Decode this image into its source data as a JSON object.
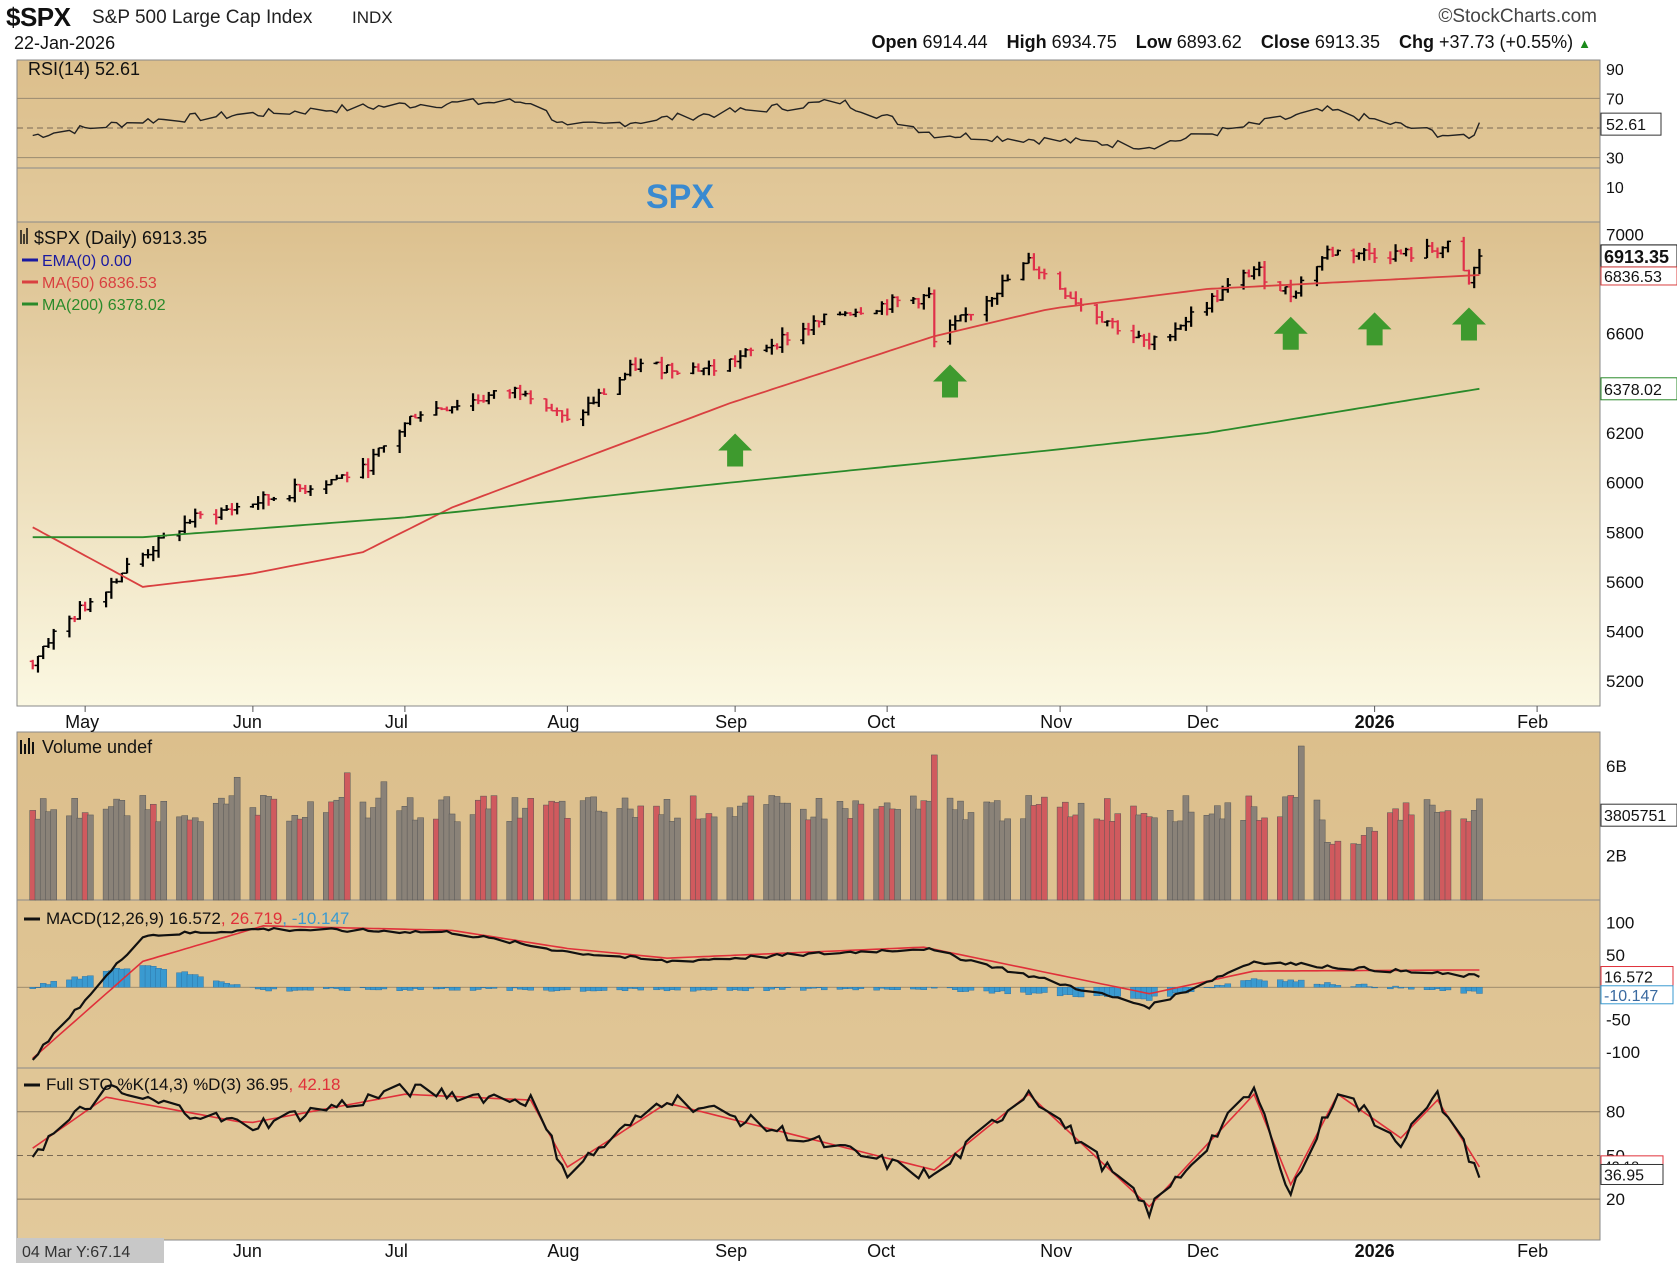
{
  "header": {
    "symbol": "$SPX",
    "name": "S&P 500 Large Cap Index",
    "exchange": "INDX",
    "source": "©StockCharts.com",
    "date": "22-Jan-2026",
    "open_label": "Open",
    "open": "6914.44",
    "high_label": "High",
    "high": "6934.75",
    "low_label": "Low",
    "low": "6893.62",
    "close_label": "Close",
    "close": "6913.35",
    "chg_label": "Chg",
    "chg": "+37.73 (+0.55%)"
  },
  "colors": {
    "up": "#000000",
    "down": "#e0304a",
    "ma50": "#d94040",
    "ma200": "#2a8a2a",
    "ema": "#1a1aa0",
    "macd_hist": "#3a9ad0",
    "arrow": "#3e9a2e",
    "spx_label": "#3a8ad0"
  },
  "panels": {
    "rsi": {
      "label": "RSI(14) 52.61",
      "ticks": [
        "90",
        "70",
        "50",
        "30",
        "10"
      ],
      "value": "52.61"
    },
    "spx_title": "SPX",
    "price": {
      "label": "$SPX (Daily) 6913.35",
      "ema_label": "EMA(0) 0.00",
      "ma50_label": "MA(50) 6836.53",
      "ma200_label": "MA(200) 6378.02",
      "ticks": [
        "7000",
        "6800",
        "6600",
        "6200",
        "6000",
        "5800",
        "5600",
        "5400",
        "5200"
      ],
      "tag_close": "6913.35",
      "tag_ma50": "6836.53",
      "tag_ma200": "6378.02"
    },
    "volume": {
      "label": "Volume undef",
      "ticks": [
        "6B",
        "2B"
      ],
      "tag": "3805751"
    },
    "macd": {
      "label_a": "MACD(12,26,9) 16.572",
      "label_b": ", 26.719",
      "label_c": ", -10.147",
      "ticks": [
        "100",
        "50",
        "-50",
        "-100"
      ],
      "tag_macd": "16.572",
      "tag_hist": "-10.147"
    },
    "sto": {
      "label_a": "Full STO %K(14,3) %D(3) 36.95",
      "label_b": ", 42.18",
      "ticks": [
        "80",
        "50",
        "20"
      ],
      "tag_k": "36.95",
      "tag_d": "42.18"
    },
    "months_top": [
      "May",
      "Jun",
      "Jul",
      "Aug",
      "Sep",
      "Oct",
      "Nov",
      "Dec",
      "2026",
      "Feb"
    ],
    "months_bottom": [
      "Jun",
      "Jul",
      "Aug",
      "Sep",
      "Oct",
      "Nov",
      "Dec",
      "2026",
      "Feb"
    ],
    "cursor_readout": "04 Mar Y:67.14"
  },
  "chart_data": {
    "type": "line",
    "title": "$SPX S&P 500 Large Cap Index INDX",
    "price_ylim": [
      5100,
      7050
    ],
    "price_anchor_dates": [
      "2025-04-21",
      "2025-04-24",
      "2025-05-09",
      "2025-05-21",
      "2025-06-04",
      "2025-06-23",
      "2025-07-03",
      "2025-07-24",
      "2025-08-01",
      "2025-08-14",
      "2025-08-29",
      "2025-09-23",
      "2025-10-09",
      "2025-10-10",
      "2025-10-28",
      "2025-11-07",
      "2025-11-20",
      "2025-12-10",
      "2025-12-17",
      "2025-12-24",
      "2026-01-09",
      "2026-01-16",
      "2026-01-20",
      "2026-01-22"
    ],
    "price_anchors": [
      5280,
      5370,
      5660,
      5850,
      5930,
      6050,
      6280,
      6380,
      6240,
      6470,
      6460,
      6690,
      6750,
      6560,
      6890,
      6720,
      6550,
      6860,
      6760,
      6930,
      6920,
      6950,
      6800,
      6913.35
    ],
    "ma50_anchor_dates": [
      "2025-04-21",
      "2025-05-12",
      "2025-06-01",
      "2025-06-23",
      "2025-07-10",
      "2025-09-01",
      "2025-10-10",
      "2025-11-01",
      "2025-12-01",
      "2026-01-22"
    ],
    "ma50_anchors": [
      5820,
      5580,
      5630,
      5720,
      5900,
      6320,
      6590,
      6700,
      6780,
      6836.53
    ],
    "ma200_anchor_dates": [
      "2025-04-21",
      "2025-05-12",
      "2025-07-01",
      "2025-09-01",
      "2025-11-01",
      "2025-12-01",
      "2026-01-22"
    ],
    "ma200_anchors": [
      5780,
      5780,
      5860,
      6000,
      6130,
      6200,
      6378.02
    ],
    "support_arrow_dates": [
      "2025-09-02",
      "2025-10-13",
      "2025-12-17",
      "2026-01-02",
      "2026-01-20"
    ],
    "rsi_anchor_dates": [
      "2025-04-21",
      "2025-05-12",
      "2025-07-03",
      "2025-07-25",
      "2025-08-01",
      "2025-09-22",
      "2025-10-10",
      "2025-11-20",
      "2025-12-24",
      "2026-01-20",
      "2026-01-22"
    ],
    "rsi_anchors": [
      45,
      55,
      66,
      68,
      50,
      68,
      46,
      38,
      62,
      42,
      52.61
    ],
    "macd_anchor_dates": [
      "2025-04-21",
      "2025-05-12",
      "2025-06-04",
      "2025-07-10",
      "2025-08-01",
      "2025-08-20",
      "2025-10-08",
      "2025-11-20",
      "2025-12-10",
      "2026-01-22"
    ],
    "macd_anchors": [
      -110,
      80,
      90,
      85,
      55,
      40,
      60,
      -30,
      40,
      16.572
    ],
    "macd_signal_anchors": [
      -110,
      40,
      95,
      88,
      60,
      45,
      62,
      -10,
      25,
      26.719
    ],
    "sto_anchor_dates": [
      "2025-04-21",
      "2025-05-05",
      "2025-06-01",
      "2025-07-01",
      "2025-07-25",
      "2025-08-01",
      "2025-08-20",
      "2025-10-10",
      "2025-10-28",
      "2025-11-20",
      "2025-12-10",
      "2025-12-17",
      "2025-12-26",
      "2026-01-07",
      "2026-01-14",
      "2026-01-22"
    ],
    "sto_anchors": [
      52,
      95,
      70,
      95,
      88,
      38,
      90,
      35,
      95,
      12,
      95,
      25,
      95,
      60,
      90,
      36.95
    ],
    "sto_d_anchors": [
      55,
      90,
      72,
      92,
      88,
      42,
      86,
      40,
      92,
      15,
      92,
      30,
      92,
      62,
      88,
      42.18
    ]
  }
}
